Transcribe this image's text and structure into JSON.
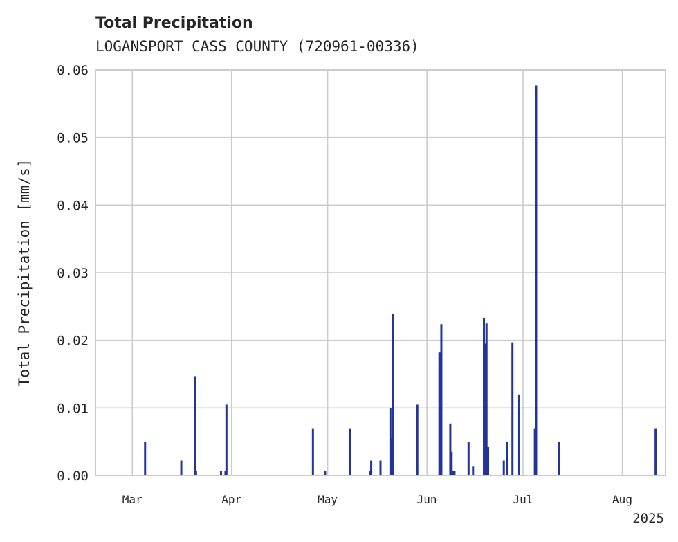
{
  "chart_data": {
    "type": "bar",
    "title": "Total Precipitation",
    "subtitle": "LOGANSPORT CASS COUNTY (720961-00336)",
    "xlabel": "",
    "ylabel": "Total Precipitation [mm/s]",
    "ylim": [
      0,
      0.06
    ],
    "yticks": [
      "0.00",
      "0.01",
      "0.02",
      "0.03",
      "0.04",
      "0.05",
      "0.06"
    ],
    "xlim_days": [
      -11.5,
      166.5
    ],
    "x_reference": "2025-03-01",
    "xticks": [
      {
        "day": 0,
        "label": "Mar"
      },
      {
        "day": 31,
        "label": "Apr"
      },
      {
        "day": 61,
        "label": "May"
      },
      {
        "day": 92,
        "label": "Jun"
      },
      {
        "day": 122,
        "label": "Jul"
      },
      {
        "day": 153,
        "label": "Aug"
      }
    ],
    "x_offset_label": "2025",
    "grid": true,
    "series": [
      {
        "name": "Total Precipitation",
        "color": "#23349a",
        "points": [
          {
            "day": 4.0,
            "value": 0.005
          },
          {
            "day": 15.3,
            "value": 0.0022
          },
          {
            "day": 19.5,
            "value": 0.0147
          },
          {
            "day": 19.9,
            "value": 0.0007
          },
          {
            "day": 27.7,
            "value": 0.0007
          },
          {
            "day": 29.1,
            "value": 0.0007
          },
          {
            "day": 29.4,
            "value": 0.0105
          },
          {
            "day": 56.4,
            "value": 0.0069
          },
          {
            "day": 60.2,
            "value": 0.0007
          },
          {
            "day": 68.0,
            "value": 0.0069
          },
          {
            "day": 74.3,
            "value": 0.0007
          },
          {
            "day": 74.6,
            "value": 0.0022
          },
          {
            "day": 77.5,
            "value": 0.0022
          },
          {
            "day": 80.6,
            "value": 0.01
          },
          {
            "day": 81.0,
            "value": 0.0055
          },
          {
            "day": 81.3,
            "value": 0.0239
          },
          {
            "day": 89.0,
            "value": 0.0105
          },
          {
            "day": 95.9,
            "value": 0.0182
          },
          {
            "day": 96.5,
            "value": 0.0224
          },
          {
            "day": 99.3,
            "value": 0.0077
          },
          {
            "day": 99.7,
            "value": 0.0035
          },
          {
            "day": 100.2,
            "value": 0.0007
          },
          {
            "day": 100.6,
            "value": 0.0007
          },
          {
            "day": 105.0,
            "value": 0.005
          },
          {
            "day": 106.4,
            "value": 0.0014
          },
          {
            "day": 109.8,
            "value": 0.0233
          },
          {
            "day": 110.2,
            "value": 0.0195
          },
          {
            "day": 110.6,
            "value": 0.0225
          },
          {
            "day": 111.1,
            "value": 0.0042
          },
          {
            "day": 116.0,
            "value": 0.0022
          },
          {
            "day": 117.1,
            "value": 0.005
          },
          {
            "day": 118.7,
            "value": 0.0197
          },
          {
            "day": 120.8,
            "value": 0.012
          },
          {
            "day": 125.7,
            "value": 0.0069
          },
          {
            "day": 126.1,
            "value": 0.0577
          },
          {
            "day": 133.2,
            "value": 0.005
          },
          {
            "day": 163.4,
            "value": 0.0069
          }
        ]
      }
    ]
  }
}
